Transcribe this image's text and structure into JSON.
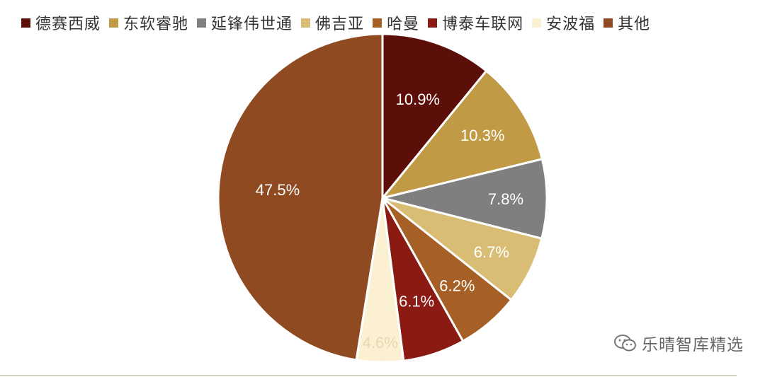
{
  "chart_data": {
    "type": "pie",
    "categories": [
      "德赛西威",
      "东软睿驰",
      "延锋伟世通",
      "佛吉亚",
      "哈曼",
      "博泰车联网",
      "安波福",
      "其他"
    ],
    "values": [
      10.9,
      10.3,
      7.8,
      6.7,
      6.2,
      6.1,
      4.6,
      47.5
    ],
    "data_labels": [
      "10.9%",
      "10.3%",
      "7.8%",
      "6.7%",
      "6.2%",
      "6.1%",
      "4.6%",
      "47.5%"
    ],
    "colors": [
      "#5c0f08",
      "#c19a45",
      "#7f7f7f",
      "#d9bd75",
      "#a65f24",
      "#8a1a12",
      "#fbf1d2",
      "#8f4a22"
    ],
    "label_colors": [
      "#ffffff",
      "#ffffff",
      "#ffffff",
      "#ffffff",
      "#ffffff",
      "#ffffff",
      "#e6d8b0",
      "#ffffff"
    ],
    "legend_position": "top"
  },
  "watermark": {
    "icon": "wechat-icon",
    "text": "乐晴智库精选"
  }
}
